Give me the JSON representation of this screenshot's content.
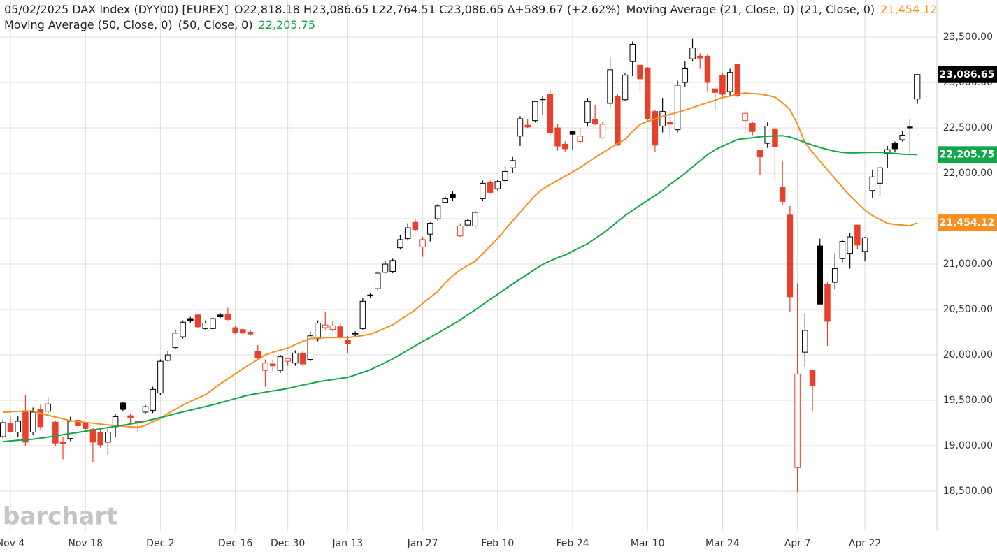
{
  "chart_data": {
    "type": "candlestick",
    "title": "05/02/2025 DAX Index (DYY00) [EUREX]",
    "summary": "O22,818.18  H23,086.65  L22,764.51  C23,086.65  ∆+589.67 (+2.62%)",
    "watermark": "barchart",
    "categories": [
      null,
      "Nov 4",
      null,
      null,
      null,
      null,
      null,
      null,
      null,
      null,
      null,
      "Nov 18",
      null,
      null,
      null,
      null,
      null,
      null,
      null,
      null,
      null,
      "Dec 2",
      null,
      null,
      null,
      null,
      null,
      null,
      null,
      null,
      null,
      "Dec 16",
      null,
      null,
      null,
      null,
      null,
      null,
      "Dec 30",
      null,
      null,
      null,
      null,
      null,
      null,
      null,
      "Jan 13",
      null,
      null,
      null,
      null,
      null,
      null,
      null,
      null,
      null,
      "Jan 27",
      null,
      null,
      null,
      null,
      null,
      null,
      null,
      null,
      null,
      "Feb 10",
      null,
      null,
      null,
      null,
      null,
      null,
      null,
      null,
      null,
      "Feb 24",
      null,
      null,
      null,
      null,
      null,
      null,
      null,
      null,
      null,
      "Mar 10",
      null,
      null,
      null,
      null,
      null,
      null,
      null,
      null,
      null,
      "Mar 24",
      null,
      null,
      null,
      null,
      null,
      null,
      null,
      null,
      null,
      "Apr 7",
      null,
      null,
      null,
      null,
      null,
      null,
      null,
      null,
      "Apr 22",
      null,
      null,
      null,
      null,
      null,
      null,
      null
    ],
    "ylim": [
      18062,
      23908
    ],
    "yticks": [
      {
        "value": 18500,
        "label": "18,500.00"
      },
      {
        "value": 19000,
        "label": "19,000.00"
      },
      {
        "value": 19500,
        "label": "19,500.00"
      },
      {
        "value": 20000,
        "label": "20,000.00"
      },
      {
        "value": 20500,
        "label": "20,500.00"
      },
      {
        "value": 21000,
        "label": "21,000.00"
      },
      {
        "value": 21500,
        "label": "21,500.00"
      },
      {
        "value": 22000,
        "label": "22,000.00"
      },
      {
        "value": 22500,
        "label": "22,500.00"
      },
      {
        "value": 23000,
        "label": "23,000.00"
      },
      {
        "value": 23500,
        "label": "23,500.00"
      }
    ],
    "grid": true,
    "candles": {
      "name": "DAX Index (DYY00)",
      "up_color": "#000000",
      "down_color": "#e8402a",
      "last_label": "23,086.65",
      "open": [
        19100,
        19250,
        19150,
        19370,
        19150,
        19400,
        19380,
        19260,
        19040,
        19080,
        19280,
        19250,
        19180,
        19150,
        19040,
        19210,
        19470,
        19330,
        19270,
        19370,
        19390,
        19580,
        19940,
        20080,
        20200,
        20400,
        20440,
        20290,
        20290,
        20440,
        20450,
        20300,
        20280,
        20250,
        20040,
        19830,
        19900,
        19830,
        19930,
        19910,
        20020,
        19950,
        20180,
        20300,
        20280,
        20310,
        20160,
        20240,
        20290,
        20660,
        20730,
        20910,
        20920,
        21180,
        21280,
        21460,
        21190,
        21330,
        21500,
        21680,
        21770,
        21310,
        21430,
        21420,
        21720,
        21900,
        21830,
        21920,
        22060,
        22410,
        22530,
        22580,
        22820,
        22870,
        22500,
        22320,
        22460,
        22350,
        22560,
        22590,
        22390,
        22770,
        22850,
        22810,
        23230,
        23190,
        23160,
        22680,
        22520,
        22560,
        22480,
        23000,
        23260,
        23290,
        23290,
        22930,
        23080,
        22900,
        23200,
        22580,
        22550,
        22250,
        22330,
        22490,
        21850,
        21540,
        18760,
        20030,
        19830,
        21200,
        20780,
        20800,
        21060,
        21120,
        21430,
        21140,
        21810,
        21890,
        22220,
        22330,
        22370,
        22510,
        22818.18
      ],
      "high": [
        19290,
        19320,
        19330,
        19560,
        19420,
        19450,
        19540,
        19270,
        19100,
        19320,
        19300,
        19260,
        19200,
        19180,
        19200,
        19350,
        19480,
        19350,
        19280,
        19450,
        19650,
        19950,
        20040,
        20280,
        20380,
        20420,
        20450,
        20380,
        20420,
        20460,
        20520,
        20320,
        20300,
        20270,
        20110,
        19950,
        19940,
        20000,
        19970,
        20050,
        20040,
        20260,
        20380,
        20480,
        20370,
        20350,
        20210,
        20260,
        20630,
        20680,
        20920,
        21030,
        21060,
        21320,
        21450,
        21500,
        21300,
        21460,
        21660,
        21750,
        21800,
        21450,
        21500,
        21590,
        21920,
        21920,
        21930,
        22080,
        22180,
        22630,
        22600,
        22800,
        22850,
        22920,
        22540,
        22350,
        22470,
        22500,
        22830,
        22750,
        22570,
        23280,
        22870,
        23100,
        23450,
        23210,
        23170,
        22700,
        22830,
        22700,
        23020,
        23230,
        23480,
        23320,
        23310,
        22960,
        23100,
        23150,
        23210,
        22710,
        22570,
        22250,
        22560,
        22510,
        22140,
        21640,
        20790,
        20460,
        19830,
        21280,
        20800,
        21120,
        21270,
        21340,
        21430,
        21300,
        22040,
        22080,
        22300,
        22350,
        22470,
        22600,
        23086.65
      ],
      "low": [
        19080,
        19150,
        19100,
        19000,
        19120,
        19180,
        19350,
        19000,
        18850,
        19050,
        19180,
        19150,
        18820,
        18980,
        18900,
        19100,
        19380,
        19250,
        19150,
        19350,
        19360,
        19560,
        19930,
        20060,
        20180,
        20350,
        20300,
        20280,
        20280,
        20410,
        20380,
        20230,
        20220,
        20210,
        19950,
        19650,
        19820,
        19800,
        19880,
        19880,
        19880,
        19930,
        20150,
        20280,
        20260,
        20170,
        20020,
        20200,
        20280,
        20630,
        20710,
        20900,
        20900,
        21160,
        21260,
        21370,
        21080,
        21250,
        21480,
        21670,
        21700,
        21300,
        21420,
        21400,
        21700,
        21780,
        21810,
        21890,
        22000,
        22300,
        22500,
        22560,
        22640,
        22420,
        22250,
        22230,
        22250,
        22320,
        22520,
        22530,
        22380,
        22720,
        22300,
        22800,
        23070,
        22900,
        22580,
        22230,
        22450,
        22380,
        22450,
        22950,
        23230,
        23150,
        22890,
        22700,
        22840,
        22850,
        22840,
        22450,
        22420,
        21980,
        22280,
        21920,
        21650,
        20470,
        18490,
        19870,
        19380,
        20560,
        20100,
        20720,
        21020,
        20950,
        21160,
        21030,
        21730,
        21750,
        22060,
        22230,
        22350,
        22220,
        22764.51
      ],
      "close": [
        19254,
        19150,
        19270,
        19040,
        19370,
        19210,
        19460,
        19030,
        19020,
        19270,
        19220,
        19190,
        19040,
        19010,
        19150,
        19320,
        19400,
        19310,
        19250,
        19430,
        19620,
        19930,
        20000,
        20240,
        20360,
        20380,
        20310,
        20350,
        20400,
        20420,
        20390,
        20250,
        20240,
        20230,
        19970,
        19910,
        19880,
        19980,
        19960,
        20020,
        19900,
        20210,
        20350,
        20330,
        20320,
        20190,
        20120,
        20230,
        20590,
        20650,
        20900,
        21000,
        21040,
        21270,
        21400,
        21380,
        21270,
        21450,
        21640,
        21720,
        21730,
        21420,
        21480,
        21570,
        21890,
        21790,
        21910,
        22020,
        22140,
        22600,
        22510,
        22790,
        22810,
        22450,
        22300,
        22270,
        22430,
        22410,
        22790,
        22550,
        22540,
        23140,
        22310,
        23080,
        23420,
        23040,
        22600,
        22310,
        22680,
        22540,
        22970,
        23150,
        23380,
        23270,
        23000,
        22890,
        22870,
        23110,
        22850,
        22660,
        22460,
        22180,
        22520,
        22290,
        21690,
        20640,
        19790,
        20270,
        19660,
        20560,
        20370,
        20950,
        21250,
        21300,
        21210,
        21290,
        21960,
        22060,
        22260,
        22270,
        22420,
        22500,
        23086.65
      ]
    },
    "series": [
      {
        "name": "Moving Average (21, Close, 0)",
        "params": "(21, Close, 0)",
        "color": "#f7901e",
        "last_label": "21,454.12",
        "values": [
          19369,
          19373,
          19378,
          19383,
          19382,
          19356,
          19335,
          19316,
          19296,
          19276,
          19267,
          19257,
          19249,
          19238,
          19229,
          19222,
          19215,
          19209,
          19202,
          19225,
          19265,
          19300,
          19355,
          19400,
          19448,
          19487,
          19525,
          19562,
          19622,
          19683,
          19736,
          19792,
          19847,
          19900,
          19948,
          20000,
          20030,
          20052,
          20077,
          20114,
          20150,
          20180,
          20186,
          20190,
          20192,
          20192,
          20192,
          20200,
          20214,
          20228,
          20260,
          20296,
          20331,
          20388,
          20440,
          20497,
          20568,
          20633,
          20700,
          20793,
          20870,
          20935,
          20985,
          21032,
          21112,
          21201,
          21282,
          21380,
          21477,
          21570,
          21663,
          21756,
          21828,
          21875,
          21924,
          21968,
          22015,
          22064,
          22118,
          22174,
          22226,
          22277,
          22328,
          22375,
          22460,
          22537,
          22572,
          22597,
          22626,
          22649,
          22671,
          22695,
          22723,
          22751,
          22777,
          22805,
          22833,
          22851,
          22871,
          22884,
          22878,
          22872,
          22857,
          22839,
          22777,
          22700,
          22540,
          22340,
          22232,
          22133,
          22035,
          21945,
          21846,
          21754,
          21676,
          21593,
          21535,
          21492,
          21448,
          21437,
          21430,
          21423,
          21454.12
        ]
      },
      {
        "name": "Moving Average (50, Close, 0)",
        "params": "(50, Close, 0)",
        "color": "#12a84a",
        "last_label": "22,205.75",
        "values": [
          19046,
          19053,
          19060,
          19066,
          19073,
          19083,
          19096,
          19109,
          19122,
          19135,
          19147,
          19160,
          19173,
          19187,
          19200,
          19213,
          19226,
          19240,
          19253,
          19270,
          19290,
          19310,
          19330,
          19353,
          19372,
          19392,
          19412,
          19431,
          19451,
          19474,
          19496,
          19519,
          19542,
          19562,
          19576,
          19590,
          19604,
          19617,
          19631,
          19650,
          19669,
          19685,
          19704,
          19717,
          19729,
          19741,
          19753,
          19780,
          19808,
          19836,
          19876,
          19915,
          19956,
          20004,
          20052,
          20100,
          20149,
          20193,
          20240,
          20289,
          20335,
          20385,
          20442,
          20495,
          20554,
          20612,
          20667,
          20725,
          20782,
          20835,
          20889,
          20944,
          20996,
          21035,
          21070,
          21100,
          21142,
          21184,
          21224,
          21282,
          21336,
          21400,
          21469,
          21535,
          21591,
          21647,
          21703,
          21755,
          21811,
          21878,
          21938,
          21999,
          22069,
          22138,
          22205,
          22258,
          22298,
          22336,
          22372,
          22382,
          22392,
          22402,
          22408,
          22411,
          22414,
          22400,
          22371,
          22340,
          22310,
          22284,
          22262,
          22243,
          22229,
          22224,
          22225,
          22228,
          22230,
          22231,
          22226,
          22218,
          22210,
          22207,
          22205.75
        ]
      }
    ]
  }
}
